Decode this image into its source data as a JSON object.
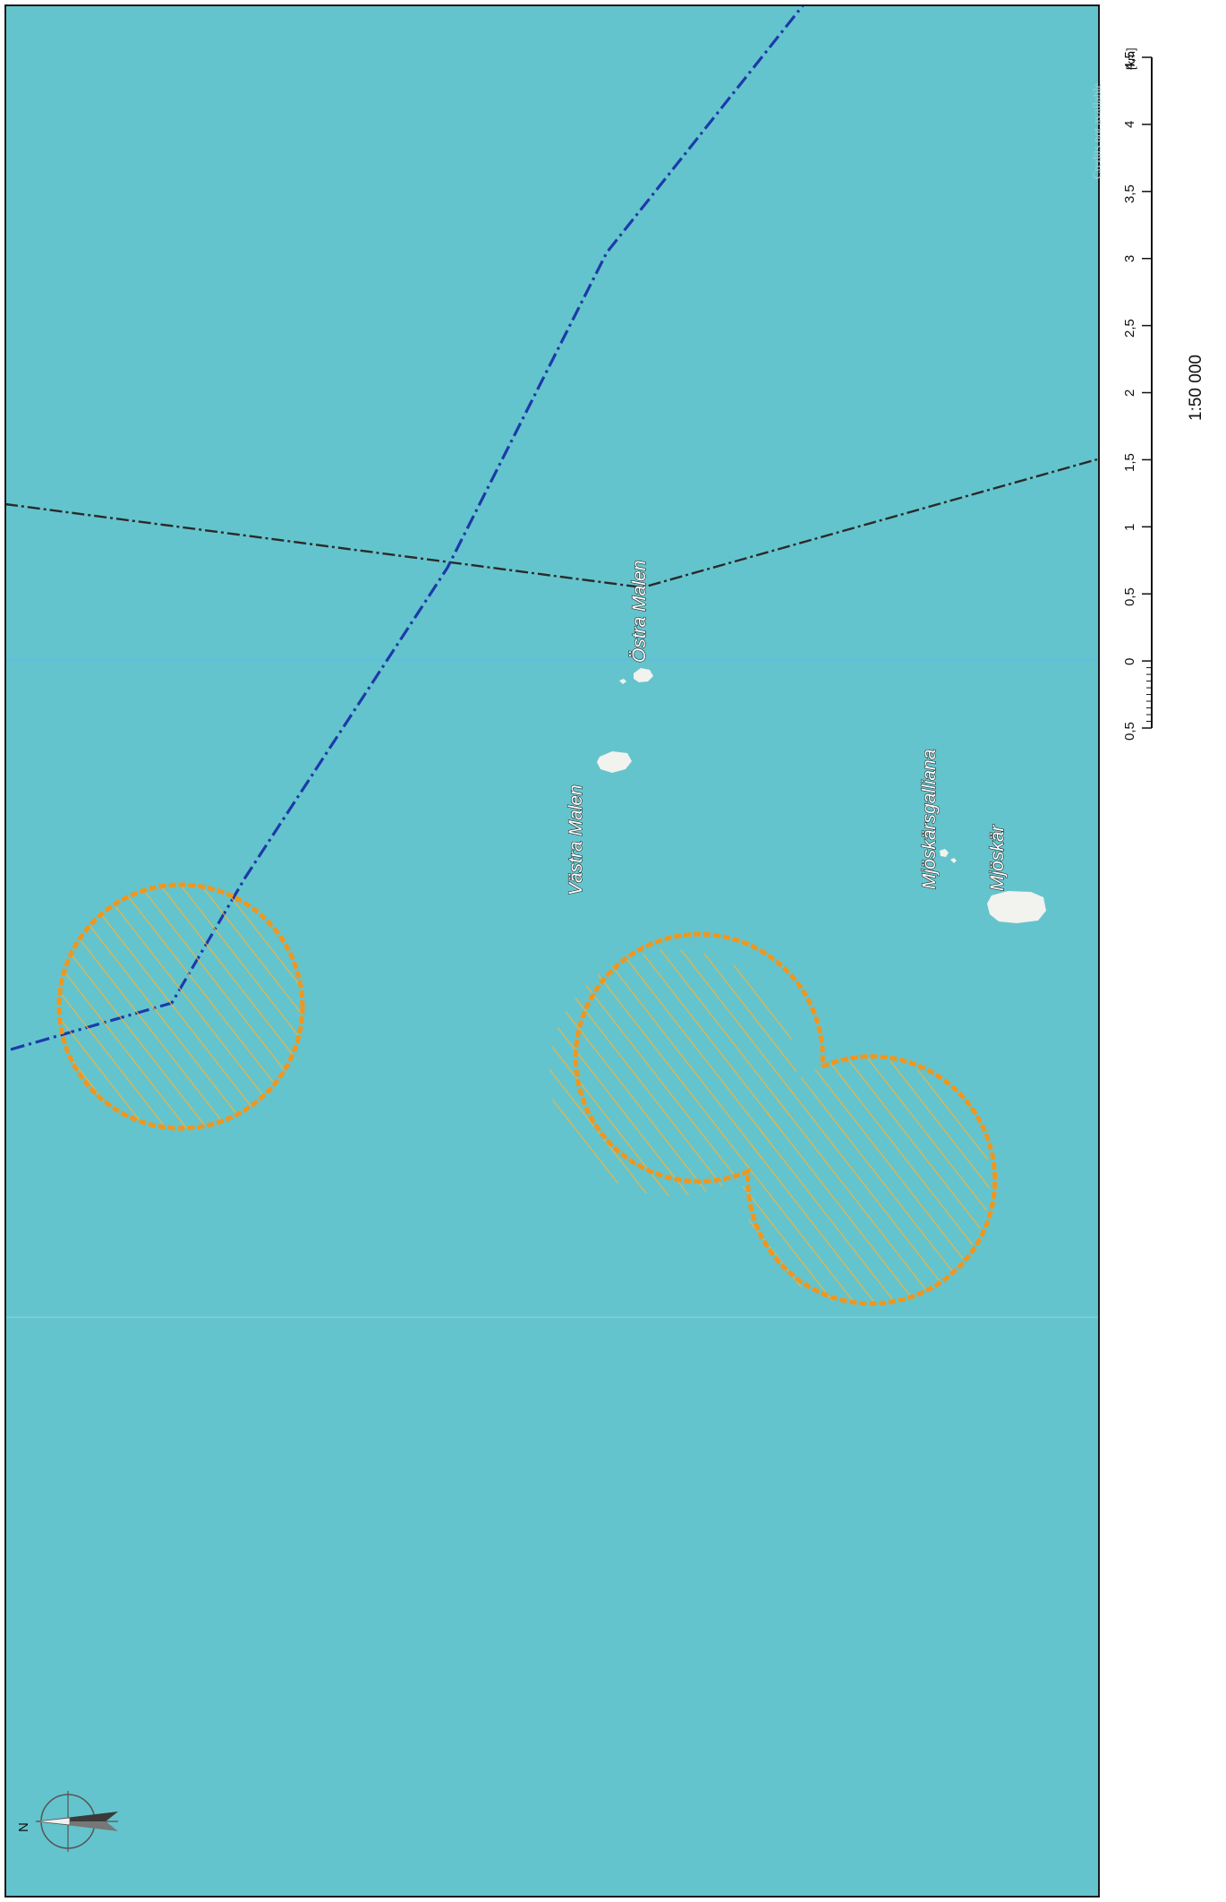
{
  "map": {
    "colors": {
      "sea": "#64c4cd",
      "border": "#1a1a1a",
      "blue_route": "#1d3aa8",
      "zone_stroke": "#f0961e",
      "zone_hatch": "#f5b23a",
      "island": "#f2f2ee",
      "black_line": "#2a2a2a"
    },
    "credits": "Credits not available",
    "place_labels": [
      {
        "id": "ostra-malen",
        "text": "Östra Malen"
      },
      {
        "id": "vastra-malen",
        "text": "Västra Malen"
      },
      {
        "id": "mjoskarsgalliana",
        "text": "Mjöskärsgalliana"
      },
      {
        "id": "mjoskar",
        "text": "Mjöskär"
      }
    ],
    "features": [
      {
        "id": "blue-route",
        "kind": "line",
        "style": "dash-dot"
      },
      {
        "id": "black-boundary",
        "kind": "line",
        "style": "dashed"
      },
      {
        "id": "zone-single",
        "kind": "hatched-circle"
      },
      {
        "id": "zone-double",
        "kind": "hatched-double-circle"
      }
    ],
    "north_arrow": {
      "label": "N",
      "icon": "compass-rose-icon"
    }
  },
  "scale_bar": {
    "unit": "[km]",
    "ticks": [
      "0,5",
      "0",
      "0,5",
      "1",
      "1,5",
      "2",
      "2,5",
      "3",
      "3,5",
      "4",
      "4,5"
    ],
    "ratio": "1:50 000"
  }
}
